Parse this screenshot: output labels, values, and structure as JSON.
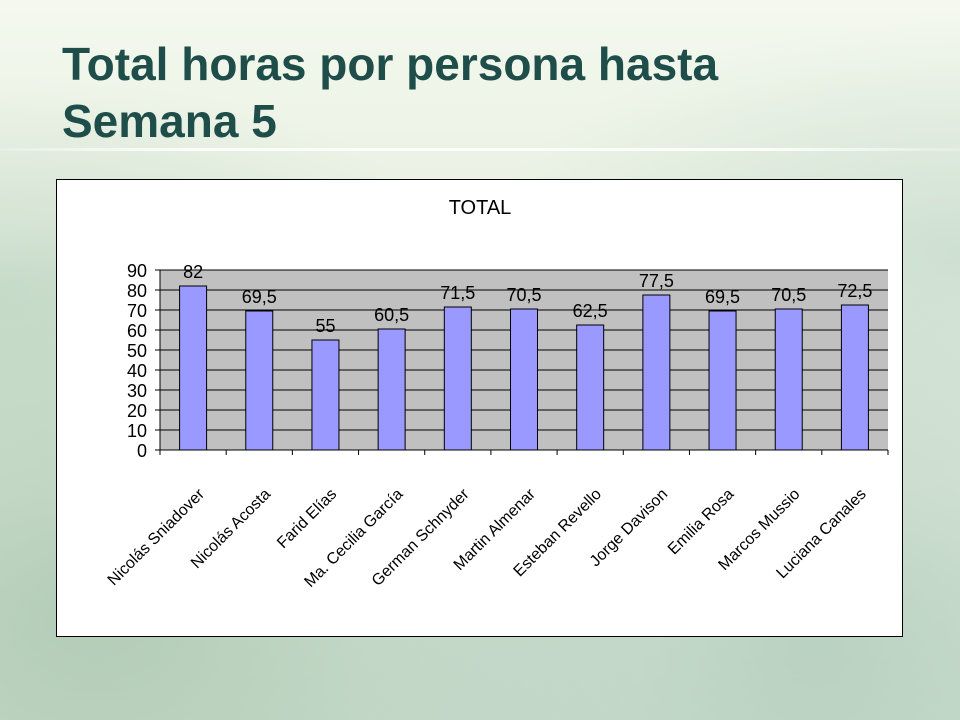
{
  "slide": {
    "title": "Total horas por persona hasta\nSemana 5"
  },
  "chart_data": {
    "type": "bar",
    "title": "TOTAL",
    "xlabel": "",
    "ylabel": "",
    "categories": [
      "Nicolás Sniadover",
      "Nicolás Acosta",
      "Farid Elías",
      "Ma. Cecilia García",
      "German Schnyder",
      "Martin Almenar",
      "Esteban Revello",
      "Jorge Davison",
      "Emilia Rosa",
      "Marcos Mussio",
      "Luciana Canales"
    ],
    "values": [
      82,
      69.5,
      55,
      60.5,
      71.5,
      70.5,
      62.5,
      77.5,
      69.5,
      70.5,
      72.5
    ],
    "value_labels": [
      "82",
      "69,5",
      "55",
      "60,5",
      "71,5",
      "70,5",
      "62,5",
      "77,5",
      "69,5",
      "70,5",
      "72,5"
    ],
    "ylim": [
      0,
      90
    ],
    "yticks": [
      0,
      10,
      20,
      30,
      40,
      50,
      60,
      70,
      80,
      90
    ],
    "grid": true,
    "legend": "none",
    "colors": {
      "bar_fill": "#9999ff",
      "bar_stroke": "#000000",
      "plot_background": "#c0c0c0",
      "gridline": "#000000"
    }
  }
}
